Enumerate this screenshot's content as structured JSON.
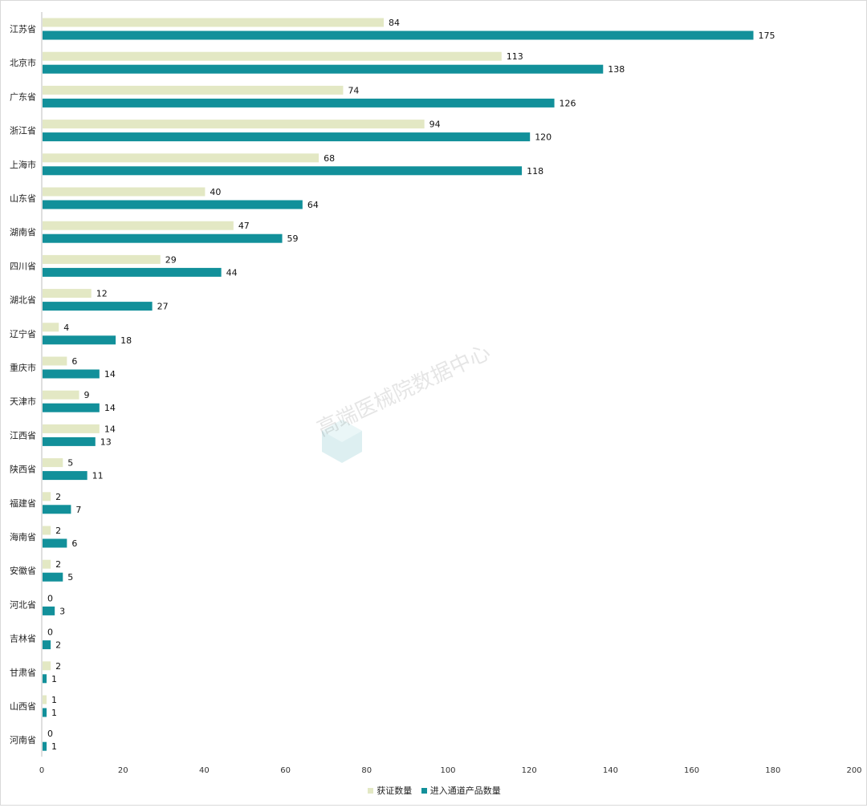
{
  "chart_data": {
    "type": "bar",
    "orientation": "horizontal",
    "categories": [
      "江苏省",
      "北京市",
      "广东省",
      "浙江省",
      "上海市",
      "山东省",
      "湖南省",
      "四川省",
      "湖北省",
      "辽宁省",
      "重庆市",
      "天津市",
      "江西省",
      "陕西省",
      "福建省",
      "海南省",
      "安徽省",
      "河北省",
      "吉林省",
      "甘肃省",
      "山西省",
      "河南省"
    ],
    "series": [
      {
        "name": "获证数量",
        "color": "#e3e8c4",
        "values": [
          84,
          113,
          74,
          94,
          68,
          40,
          47,
          29,
          12,
          4,
          6,
          9,
          14,
          5,
          2,
          2,
          2,
          0,
          0,
          2,
          1,
          0
        ]
      },
      {
        "name": "进入通道产品数量",
        "color": "#12909a",
        "values": [
          175,
          138,
          126,
          120,
          118,
          64,
          59,
          44,
          27,
          18,
          14,
          14,
          13,
          11,
          7,
          6,
          5,
          3,
          2,
          1,
          1,
          1
        ]
      }
    ],
    "xlim": [
      0,
      200
    ],
    "xticks": [
      0,
      20,
      40,
      60,
      80,
      100,
      120,
      140,
      160,
      180,
      200
    ],
    "grid": false,
    "legend_position": "bottom"
  },
  "watermark": "高端医械院数据中心"
}
